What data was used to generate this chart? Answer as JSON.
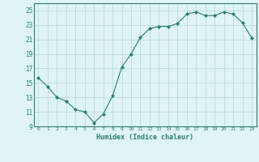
{
  "x": [
    0,
    1,
    2,
    3,
    4,
    5,
    6,
    7,
    8,
    9,
    10,
    11,
    12,
    13,
    14,
    15,
    16,
    17,
    18,
    19,
    20,
    21,
    22,
    23
  ],
  "y": [
    15.7,
    14.5,
    13.0,
    12.5,
    11.3,
    11.0,
    9.5,
    10.7,
    13.2,
    17.2,
    19.0,
    21.3,
    22.5,
    22.8,
    22.8,
    23.2,
    24.5,
    24.8,
    24.3,
    24.3,
    24.8,
    24.5,
    23.3,
    21.2
  ],
  "xlim": [
    -0.5,
    23.5
  ],
  "ylim": [
    9,
    26
  ],
  "yticks": [
    9,
    11,
    13,
    15,
    17,
    19,
    21,
    23,
    25
  ],
  "xticks": [
    0,
    1,
    2,
    3,
    4,
    5,
    6,
    7,
    8,
    9,
    10,
    11,
    12,
    13,
    14,
    15,
    16,
    17,
    18,
    19,
    20,
    21,
    22,
    23
  ],
  "xlabel": "Humidex (Indice chaleur)",
  "line_color": "#2e7d6e",
  "marker": "D",
  "marker_size": 2,
  "bg_color": "#dff4f4",
  "grid_color": "#bcdcdc",
  "title": ""
}
